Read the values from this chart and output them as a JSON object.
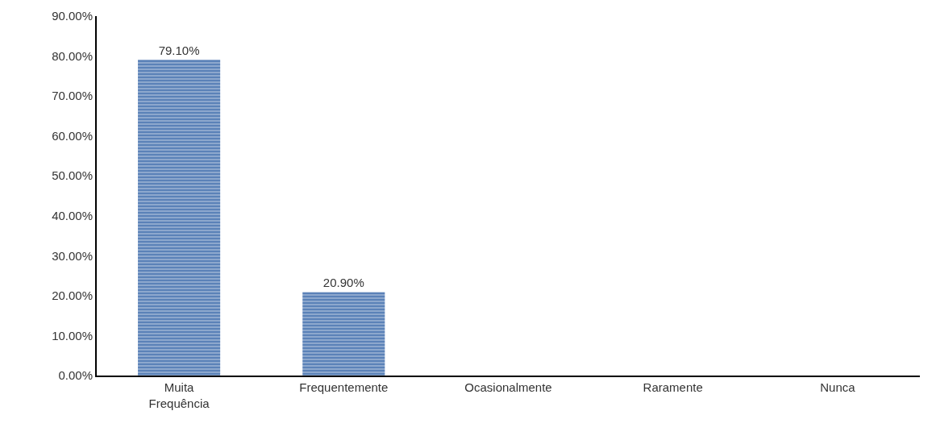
{
  "chart_data": {
    "type": "bar",
    "categories": [
      "Muita\nFrequência",
      "Frequentemente",
      "Ocasionalmente",
      "Raramente",
      "Nunca"
    ],
    "values": [
      79.1,
      20.9,
      0,
      0,
      0
    ],
    "value_labels": [
      "79.10%",
      "20.90%",
      null,
      null,
      null
    ],
    "color": "#5b82b8",
    "ylim": [
      0,
      90
    ],
    "yticks": [
      {
        "value": 0,
        "label": "0.00%"
      },
      {
        "value": 10,
        "label": "10.00%"
      },
      {
        "value": 20,
        "label": "20.00%"
      },
      {
        "value": 30,
        "label": "30.00%"
      },
      {
        "value": 40,
        "label": "40.00%"
      },
      {
        "value": 50,
        "label": "50.00%"
      },
      {
        "value": 60,
        "label": "60.00%"
      },
      {
        "value": 70,
        "label": "70.00%"
      },
      {
        "value": 80,
        "label": "80.00%"
      },
      {
        "value": 90,
        "label": "90.00%"
      }
    ]
  }
}
